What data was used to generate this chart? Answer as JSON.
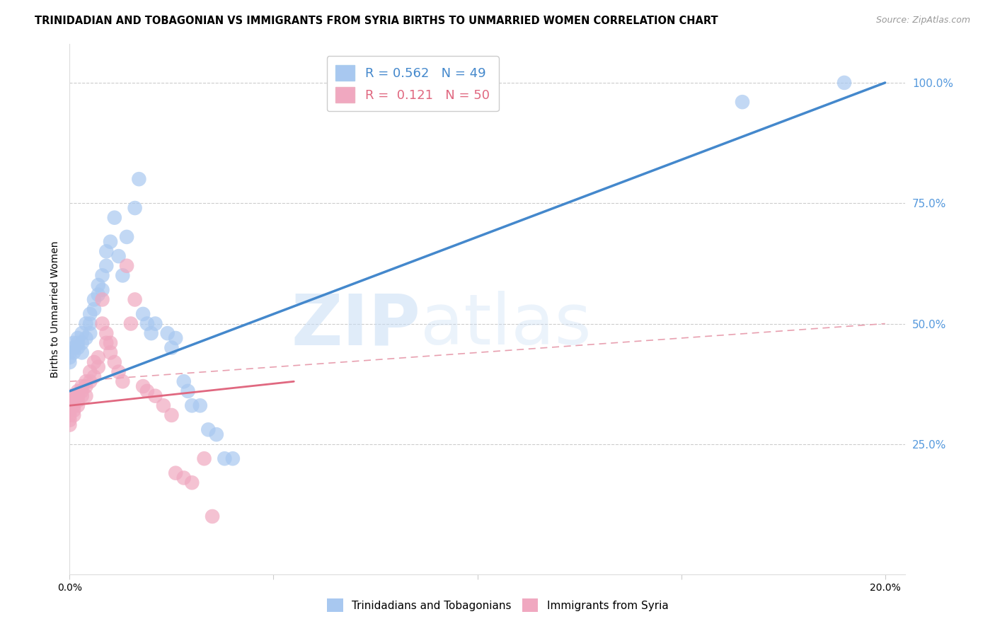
{
  "title": "TRINIDADIAN AND TOBAGONIAN VS IMMIGRANTS FROM SYRIA BIRTHS TO UNMARRIED WOMEN CORRELATION CHART",
  "source": "Source: ZipAtlas.com",
  "ylabel": "Births to Unmarried Women",
  "right_yticks": [
    "100.0%",
    "75.0%",
    "50.0%",
    "25.0%"
  ],
  "right_ytick_vals": [
    1.0,
    0.75,
    0.5,
    0.25
  ],
  "watermark_zip": "ZIP",
  "watermark_atlas": "atlas",
  "background_color": "#ffffff",
  "grid_color": "#cccccc",
  "scatter_blue_color": "#a8c8f0",
  "scatter_pink_color": "#f0a8c0",
  "line_blue_color": "#4488cc",
  "line_pink_color": "#e06880",
  "line_pink_dash_color": "#e8a0b0",
  "right_tick_color": "#5599dd",
  "blue_scatter_x": [
    0.0,
    0.0,
    0.0,
    0.001,
    0.001,
    0.001,
    0.002,
    0.002,
    0.002,
    0.003,
    0.003,
    0.003,
    0.004,
    0.004,
    0.005,
    0.005,
    0.005,
    0.006,
    0.006,
    0.007,
    0.007,
    0.008,
    0.008,
    0.009,
    0.009,
    0.01,
    0.011,
    0.012,
    0.013,
    0.014,
    0.016,
    0.017,
    0.018,
    0.019,
    0.02,
    0.021,
    0.024,
    0.025,
    0.026,
    0.028,
    0.029,
    0.03,
    0.032,
    0.034,
    0.036,
    0.038,
    0.04,
    0.165,
    0.19
  ],
  "blue_scatter_y": [
    0.44,
    0.43,
    0.42,
    0.45,
    0.46,
    0.44,
    0.47,
    0.45,
    0.46,
    0.48,
    0.44,
    0.46,
    0.5,
    0.47,
    0.52,
    0.48,
    0.5,
    0.55,
    0.53,
    0.58,
    0.56,
    0.6,
    0.57,
    0.65,
    0.62,
    0.67,
    0.72,
    0.64,
    0.6,
    0.68,
    0.74,
    0.8,
    0.52,
    0.5,
    0.48,
    0.5,
    0.48,
    0.45,
    0.47,
    0.38,
    0.36,
    0.33,
    0.33,
    0.28,
    0.27,
    0.22,
    0.22,
    0.96,
    1.0
  ],
  "pink_scatter_x": [
    0.0,
    0.0,
    0.0,
    0.0,
    0.0,
    0.0,
    0.0,
    0.001,
    0.001,
    0.001,
    0.001,
    0.001,
    0.002,
    0.002,
    0.002,
    0.002,
    0.003,
    0.003,
    0.003,
    0.004,
    0.004,
    0.004,
    0.005,
    0.005,
    0.006,
    0.006,
    0.007,
    0.007,
    0.008,
    0.008,
    0.009,
    0.009,
    0.01,
    0.01,
    0.011,
    0.012,
    0.013,
    0.014,
    0.015,
    0.016,
    0.018,
    0.019,
    0.021,
    0.023,
    0.025,
    0.026,
    0.028,
    0.03,
    0.033,
    0.035
  ],
  "pink_scatter_y": [
    0.34,
    0.33,
    0.35,
    0.32,
    0.31,
    0.3,
    0.29,
    0.35,
    0.34,
    0.33,
    0.32,
    0.31,
    0.36,
    0.35,
    0.34,
    0.33,
    0.37,
    0.36,
    0.35,
    0.38,
    0.37,
    0.35,
    0.4,
    0.38,
    0.42,
    0.39,
    0.43,
    0.41,
    0.55,
    0.5,
    0.48,
    0.46,
    0.46,
    0.44,
    0.42,
    0.4,
    0.38,
    0.62,
    0.5,
    0.55,
    0.37,
    0.36,
    0.35,
    0.33,
    0.31,
    0.19,
    0.18,
    0.17,
    0.22,
    0.1
  ],
  "blue_line_x0": 0.0,
  "blue_line_x1": 0.2,
  "blue_line_y0": 0.36,
  "blue_line_y1": 1.0,
  "pink_solid_line_x0": 0.0,
  "pink_solid_line_x1": 0.055,
  "pink_solid_line_y0": 0.33,
  "pink_solid_line_y1": 0.38,
  "pink_dash_line_x0": 0.0,
  "pink_dash_line_x1": 0.2,
  "pink_dash_line_y0": 0.38,
  "pink_dash_line_y1": 0.5,
  "xlim": [
    0.0,
    0.205
  ],
  "ylim": [
    -0.02,
    1.08
  ],
  "xtick_positions": [
    0.0,
    0.05,
    0.1,
    0.15,
    0.2
  ],
  "xtick_labels": [
    "0.0%",
    "",
    "",
    "",
    "20.0%"
  ],
  "ytick_grid": [
    0.25,
    0.5,
    0.75,
    1.0
  ]
}
